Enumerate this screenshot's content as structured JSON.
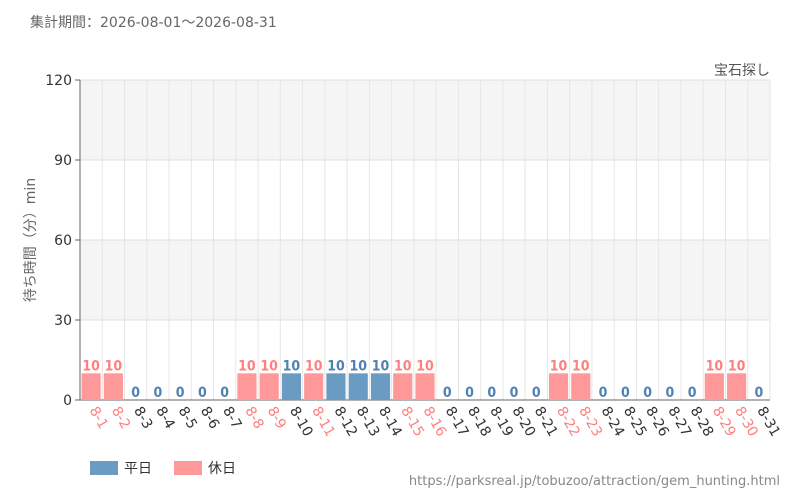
{
  "header": {
    "period": "集計期間：2026-08-01～2026-08-31"
  },
  "chart_data": {
    "type": "bar",
    "title": "宝石探し",
    "ylabel": "待ち時間（分）min",
    "xlabel": "",
    "ylim": [
      0,
      120
    ],
    "yticks": [
      0,
      30,
      60,
      90,
      120
    ],
    "grid": true,
    "legend_position": "bottom-left",
    "categories": [
      "8-1",
      "8-2",
      "8-3",
      "8-4",
      "8-5",
      "8-6",
      "8-7",
      "8-8",
      "8-9",
      "8-10",
      "8-11",
      "8-12",
      "8-13",
      "8-14",
      "8-15",
      "8-16",
      "8-17",
      "8-18",
      "8-19",
      "8-20",
      "8-21",
      "8-22",
      "8-23",
      "8-24",
      "8-25",
      "8-26",
      "8-27",
      "8-28",
      "8-29",
      "8-30",
      "8-31"
    ],
    "values": [
      10,
      10,
      0,
      0,
      0,
      0,
      0,
      10,
      10,
      10,
      10,
      10,
      10,
      10,
      10,
      10,
      0,
      0,
      0,
      0,
      0,
      10,
      10,
      0,
      0,
      0,
      0,
      0,
      10,
      10,
      0
    ],
    "day_type": [
      "holiday",
      "holiday",
      "weekday",
      "weekday",
      "weekday",
      "weekday",
      "weekday",
      "holiday",
      "holiday",
      "weekday",
      "holiday",
      "weekday",
      "weekday",
      "weekday",
      "holiday",
      "holiday",
      "weekday",
      "weekday",
      "weekday",
      "weekday",
      "weekday",
      "holiday",
      "holiday",
      "weekday",
      "weekday",
      "weekday",
      "weekday",
      "weekday",
      "holiday",
      "holiday",
      "weekday"
    ],
    "series": [
      {
        "name": "平日",
        "key": "weekday",
        "color": "#6a9bc3",
        "label_color": "#4f81b3"
      },
      {
        "name": "休日",
        "key": "holiday",
        "color": "#ff9999",
        "label_color": "#ff7f7f"
      }
    ]
  },
  "footer": {
    "source": "https://parksreal.jp/tobuzoo/attraction/gem_hunting.html"
  }
}
